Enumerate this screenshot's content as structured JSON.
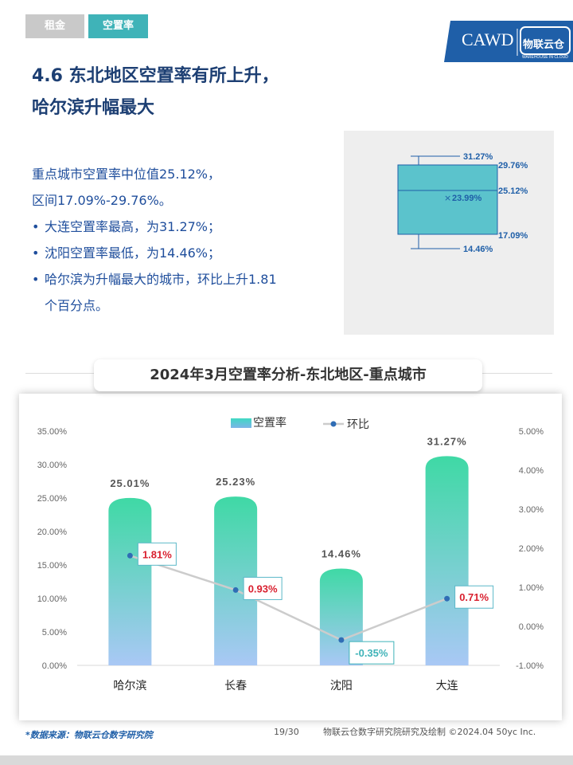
{
  "tabs": [
    {
      "label": "租金",
      "active": false
    },
    {
      "label": "空置率",
      "active": true
    }
  ],
  "logo": {
    "text_left": "CAWD",
    "text_right": "物联云仓",
    "sub_right": "WAREHOUSE IN CLOUD"
  },
  "heading": {
    "line1": "4.6 东北地区空置率有所上升，",
    "line2": "哈尔滨升幅最大"
  },
  "summary": {
    "line1": "重点城市空置率中位值25.12%，",
    "line2": "区间17.09%-29.76%。",
    "bullets": [
      {
        "lines": [
          "大连空置率最高，为31.27%；"
        ]
      },
      {
        "lines": [
          "沈阳空置率最低，为14.46%；"
        ]
      },
      {
        "lines": [
          "哈尔滨为升幅最大的城市，环比上升1.81",
          "个百分点。"
        ]
      }
    ]
  },
  "boxplot": {
    "max_label": "31.27%",
    "q3_label": "29.76%",
    "median_label": "25.12%",
    "mean_label": "23.99%",
    "q1_label": "17.09%",
    "min_label": "14.46%",
    "max": 31.27,
    "q3": 29.76,
    "median": 25.12,
    "mean": 23.99,
    "q1": 17.09,
    "min": 14.46,
    "color": "#5bc3cc"
  },
  "chart_title": "2024年3月空置率分析-东北地区-重点城市",
  "chart_data": {
    "type": "bar",
    "categories": [
      "哈尔滨",
      "长春",
      "沈阳",
      "大连"
    ],
    "series": [
      {
        "name": "空置率",
        "type": "bar",
        "values": [
          25.01,
          25.23,
          14.46,
          31.27
        ],
        "labels": [
          "25.01%",
          "25.23%",
          "14.46%",
          "31.27%"
        ],
        "axis": "left"
      },
      {
        "name": "环比",
        "type": "line",
        "values": [
          1.81,
          0.93,
          -0.35,
          0.71
        ],
        "labels": [
          "1.81%",
          "0.93%",
          "-0.35%",
          "0.71%"
        ],
        "axis": "right"
      }
    ],
    "ylim_left": [
      0,
      35
    ],
    "ylim_right": [
      -1,
      5
    ],
    "left_ticks": [
      "0.00%",
      "5.00%",
      "10.00%",
      "15.00%",
      "20.00%",
      "25.00%",
      "30.00%",
      "35.00%"
    ],
    "right_ticks": [
      "-1.00%",
      "0.00%",
      "1.00%",
      "2.00%",
      "3.00%",
      "4.00%",
      "5.00%"
    ],
    "legend_position": "top",
    "grid": false,
    "bar_color_top": "#3fd9a5",
    "bar_color_bottom": "#a9c8f5",
    "line_color": "#cccccc",
    "marker_color": "#2f6db5",
    "label_positive_color": "#d9202f",
    "label_negative_color": "#3fb3b8"
  },
  "footer": {
    "source": "*数据来源：物联云仓数字研究院",
    "page": "19/30",
    "credit": "物联云仓数字研究院研究及绘制  ©2024.04 50yc Inc."
  }
}
